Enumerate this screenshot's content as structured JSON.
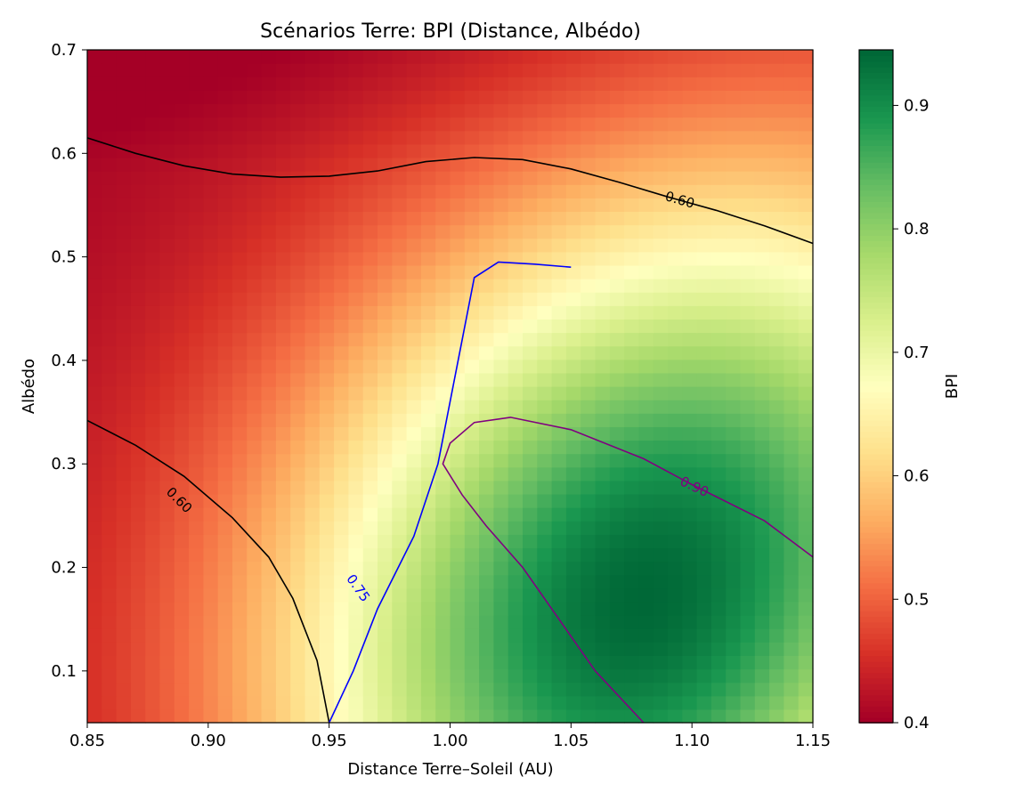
{
  "chart_data": {
    "type": "heatmap",
    "title": "Scénarios Terre: BPI (Distance, Albédo)",
    "xlabel": "Distance Terre–Soleil (AU)",
    "ylabel": "Albédo",
    "xlim": [
      0.85,
      1.15
    ],
    "ylim": [
      0.05,
      0.7
    ],
    "xticks": [
      "0.85",
      "0.90",
      "0.95",
      "1.00",
      "1.05",
      "1.10",
      "1.15"
    ],
    "yticks": [
      "0.1",
      "0.2",
      "0.3",
      "0.4",
      "0.5",
      "0.6",
      "0.7"
    ],
    "colorbar": {
      "label": "BPI",
      "range": [
        0.4,
        0.945
      ],
      "ticks": [
        "0.4",
        "0.5",
        "0.6",
        "0.7",
        "0.8",
        "0.9"
      ],
      "colormap": "RdYlGn"
    },
    "grid": "50 x 50",
    "peak": {
      "distance": 1.08,
      "albedo": 0.17,
      "value": 0.945
    },
    "contours": [
      {
        "level": 0.6,
        "label": "0.60",
        "color": "#000000",
        "segments": [
          [
            [
              0.85,
              0.615
            ],
            [
              0.87,
              0.6
            ],
            [
              0.89,
              0.588
            ],
            [
              0.91,
              0.58
            ],
            [
              0.93,
              0.577
            ],
            [
              0.95,
              0.578
            ],
            [
              0.97,
              0.583
            ],
            [
              0.99,
              0.592
            ],
            [
              1.01,
              0.596
            ],
            [
              1.03,
              0.594
            ],
            [
              1.05,
              0.585
            ],
            [
              1.07,
              0.572
            ],
            [
              1.09,
              0.558
            ],
            [
              1.11,
              0.545
            ],
            [
              1.13,
              0.53
            ],
            [
              1.15,
              0.513
            ]
          ],
          [
            [
              0.85,
              0.342
            ],
            [
              0.87,
              0.318
            ],
            [
              0.89,
              0.288
            ],
            [
              0.91,
              0.248
            ],
            [
              0.925,
              0.21
            ],
            [
              0.935,
              0.17
            ],
            [
              0.945,
              0.11
            ],
            [
              0.95,
              0.05
            ]
          ]
        ]
      },
      {
        "level": 0.75,
        "label": "0.75",
        "color": "#0000ff",
        "segments": [
          [
            [
              0.95,
              0.05
            ],
            [
              0.96,
              0.1
            ],
            [
              0.97,
              0.16
            ],
            [
              0.985,
              0.23
            ],
            [
              0.995,
              0.3
            ],
            [
              1.0,
              0.36
            ],
            [
              1.005,
              0.42
            ],
            [
              1.01,
              0.48
            ],
            [
              1.02,
              0.495
            ],
            [
              1.035,
              0.493
            ],
            [
              1.05,
              0.49
            ]
          ]
        ]
      },
      {
        "level": 0.9,
        "label": "0.90",
        "color": "#800080",
        "segments": [
          [
            [
              1.08,
              0.05
            ],
            [
              1.06,
              0.1
            ],
            [
              1.045,
              0.15
            ],
            [
              1.03,
              0.2
            ],
            [
              1.015,
              0.24
            ],
            [
              1.005,
              0.27
            ],
            [
              0.997,
              0.3
            ],
            [
              1.0,
              0.32
            ],
            [
              1.01,
              0.34
            ],
            [
              1.025,
              0.345
            ],
            [
              1.05,
              0.333
            ],
            [
              1.08,
              0.305
            ],
            [
              1.1,
              0.28
            ],
            [
              1.13,
              0.245
            ],
            [
              1.15,
              0.21
            ]
          ]
        ]
      }
    ]
  }
}
